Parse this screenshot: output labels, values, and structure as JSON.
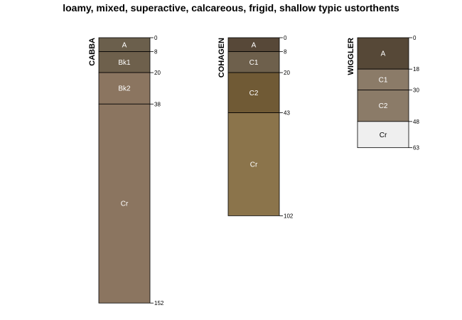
{
  "title": "loamy, mixed, superactive, calcareous, frigid, shallow typic ustorthents",
  "profiles": [
    {
      "name": "CABBA",
      "horizons": [
        {
          "name": "A",
          "top": 0,
          "bottom": 8,
          "color": "#6b5f4c",
          "label_color": "#ffffff"
        },
        {
          "name": "Bk1",
          "top": 8,
          "bottom": 20,
          "color": "#6e604c",
          "label_color": "#ffffff"
        },
        {
          "name": "Bk2",
          "top": 20,
          "bottom": 38,
          "color": "#8b7560",
          "label_color": "#ffffff"
        },
        {
          "name": "Cr",
          "top": 38,
          "bottom": 152,
          "color": "#8b7560",
          "label_color": "#ffffff"
        }
      ],
      "depth_labels": [
        "0",
        "8",
        "20",
        "38",
        "152"
      ]
    },
    {
      "name": "COHAGEN",
      "horizons": [
        {
          "name": "A",
          "top": 0,
          "bottom": 8,
          "color": "#574838",
          "label_color": "#ffffff"
        },
        {
          "name": "C1",
          "top": 8,
          "bottom": 20,
          "color": "#6e604c",
          "label_color": "#ffffff"
        },
        {
          "name": "C2",
          "top": 20,
          "bottom": 43,
          "color": "#705a35",
          "label_color": "#ffffff"
        },
        {
          "name": "Cr",
          "top": 43,
          "bottom": 102,
          "color": "#8b744b",
          "label_color": "#ffffff"
        }
      ],
      "depth_labels": [
        "0",
        "8",
        "20",
        "43",
        "102"
      ]
    },
    {
      "name": "WIGGLER",
      "horizons": [
        {
          "name": "A",
          "top": 0,
          "bottom": 18,
          "color": "#564837",
          "label_color": "#ffffff"
        },
        {
          "name": "C1",
          "top": 18,
          "bottom": 30,
          "color": "#8b7b68",
          "label_color": "#ffffff"
        },
        {
          "name": "C2",
          "top": 30,
          "bottom": 48,
          "color": "#8b7b68",
          "label_color": "#ffffff"
        },
        {
          "name": "Cr",
          "top": 48,
          "bottom": 63,
          "color": "#efefef",
          "label_color": "#000000"
        }
      ],
      "depth_labels": [
        "0",
        "18",
        "30",
        "48",
        "63"
      ]
    }
  ]
}
